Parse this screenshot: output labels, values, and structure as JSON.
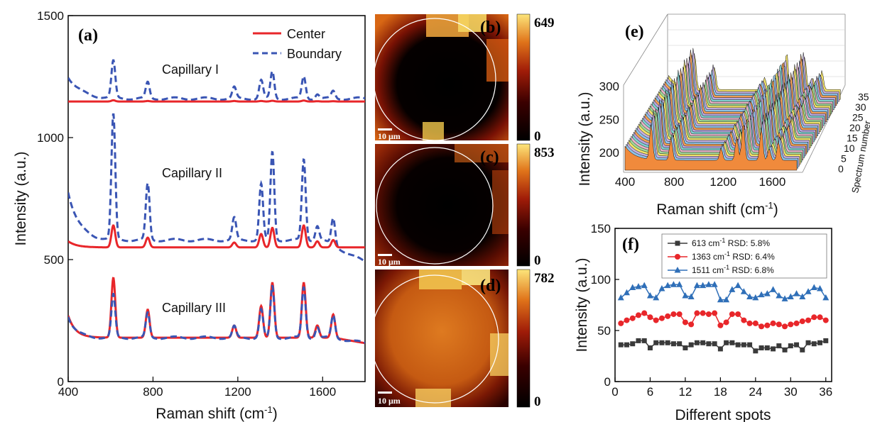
{
  "chart_data": [
    {
      "panel": "(a)",
      "type": "line",
      "xlabel": "Raman shift (cm",
      "xlabel_sup": "-1",
      "xlabel_tail": ")",
      "ylabel": "Intensity (a.u.)",
      "xlim": [
        400,
        1800
      ],
      "ylim": [
        0,
        1500
      ],
      "xticks": [
        400,
        800,
        1200,
        1600
      ],
      "yticks": [
        0,
        500,
        1000,
        1500
      ],
      "legend": [
        "Center",
        "Boundary"
      ],
      "annotations": [
        "Capillary I",
        "Capillary II",
        "Capillary III"
      ],
      "colors": {
        "center": "#e8262a",
        "boundary": "#3a55b4"
      },
      "peaks": [
        613,
        775,
        1183,
        1310,
        1363,
        1511,
        1575,
        1650
      ],
      "series": [
        {
          "name": "Center",
          "group": "Capillary I",
          "baseline": 1148,
          "peak_heights": [
            5,
            2,
            2,
            2,
            3,
            4,
            1,
            1
          ]
        },
        {
          "name": "Boundary",
          "group": "Capillary I",
          "baseline": 1160,
          "peak_heights": [
            150,
            65,
            45,
            75,
            110,
            90,
            20,
            30
          ]
        },
        {
          "name": "Center",
          "group": "Capillary II",
          "baseline": 550,
          "peak_heights": [
            90,
            40,
            20,
            55,
            80,
            90,
            25,
            30
          ]
        },
        {
          "name": "Boundary",
          "group": "Capillary II",
          "baseline": 580,
          "peak_heights": [
            510,
            230,
            90,
            230,
            360,
            330,
            60,
            110
          ]
        },
        {
          "name": "Center",
          "group": "Capillary III",
          "baseline": 180,
          "peak_heights": [
            245,
            115,
            50,
            130,
            225,
            225,
            50,
            95
          ]
        },
        {
          "name": "Boundary",
          "group": "Capillary III",
          "baseline": 180,
          "peak_heights": [
            175,
            100,
            45,
            115,
            210,
            205,
            45,
            90
          ]
        }
      ]
    },
    {
      "panel": "(b)",
      "type": "heatmap",
      "colorbar_max": "649",
      "colorbar_min": "0",
      "scalebar": "10 μm",
      "description_values": {
        "center_level": 0.02,
        "ring_level": 0.7
      }
    },
    {
      "panel": "(c)",
      "type": "heatmap",
      "colorbar_max": "853",
      "colorbar_min": "0",
      "scalebar": "10 μm",
      "description_values": {
        "center_level": 0.03,
        "ring_level": 0.55
      }
    },
    {
      "panel": "(d)",
      "type": "heatmap",
      "colorbar_max": "782",
      "colorbar_min": "0",
      "scalebar": "10 μm",
      "description_values": {
        "center_level": 0.6,
        "ring_level": 0.75
      }
    },
    {
      "panel": "(e)",
      "type": "area",
      "xlabel": "Raman shift (cm",
      "xlabel_sup": "-1",
      "xlabel_tail": ")",
      "ylabel": "Intensity (a.u.)",
      "zlabel": "Spectrum number",
      "xticks": [
        400,
        800,
        1200,
        1600
      ],
      "yticks": [
        200,
        250,
        300
      ],
      "zticks": [
        0,
        5,
        10,
        15,
        20,
        25,
        30,
        35
      ],
      "xlim": [
        400,
        1800
      ],
      "ylim": [
        170,
        320
      ],
      "spectrum_count": 36
    },
    {
      "panel": "(f)",
      "type": "line",
      "xlabel": "Different spots",
      "ylabel": "Intensity (a.u.)",
      "xlim": [
        0,
        37
      ],
      "ylim": [
        0,
        150
      ],
      "xticks": [
        0,
        6,
        12,
        18,
        24,
        30,
        36
      ],
      "yticks": [
        0,
        50,
        100,
        150
      ],
      "x": [
        1,
        2,
        3,
        4,
        5,
        6,
        7,
        8,
        9,
        10,
        11,
        12,
        13,
        14,
        15,
        16,
        17,
        18,
        19,
        20,
        21,
        22,
        23,
        24,
        25,
        26,
        27,
        28,
        29,
        30,
        31,
        32,
        33,
        34,
        35,
        36
      ],
      "series": [
        {
          "name": "613 cm",
          "sup": "-1",
          "rsd": "RSD:  5.8%",
          "color": "#3a3a3a",
          "marker": "square",
          "values": [
            36,
            36,
            37,
            40,
            40,
            33,
            38,
            38,
            38,
            37,
            37,
            33,
            36,
            38,
            38,
            37,
            37,
            32,
            38,
            38,
            36,
            36,
            36,
            30,
            33,
            33,
            32,
            35,
            31,
            35,
            36,
            31,
            38,
            37,
            38,
            40
          ]
        },
        {
          "name": "1363 cm",
          "sup": "-1",
          "rsd": "RSD: 6.4%",
          "color": "#e8262a",
          "marker": "circle",
          "values": [
            57,
            60,
            62,
            65,
            67,
            63,
            60,
            62,
            64,
            66,
            66,
            58,
            56,
            67,
            67,
            66,
            67,
            55,
            58,
            66,
            66,
            60,
            57,
            57,
            54,
            55,
            57,
            56,
            54,
            56,
            57,
            59,
            60,
            63,
            63,
            60
          ]
        },
        {
          "name": "1511 cm",
          "sup": "-1",
          "rsd": "RSD: 6.8%",
          "color": "#2f6fb8",
          "marker": "triangle",
          "values": [
            82,
            87,
            92,
            93,
            94,
            84,
            82,
            91,
            94,
            95,
            95,
            84,
            83,
            94,
            94,
            95,
            95,
            80,
            80,
            90,
            94,
            88,
            83,
            82,
            85,
            86,
            90,
            84,
            81,
            83,
            86,
            83,
            88,
            92,
            91,
            82
          ]
        }
      ]
    }
  ]
}
